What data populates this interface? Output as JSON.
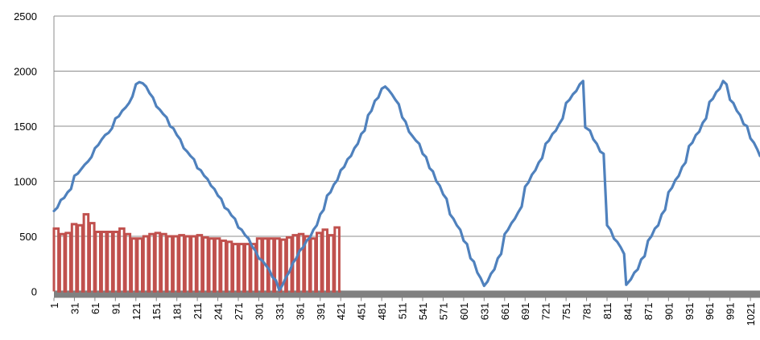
{
  "chart_data": {
    "type": "line",
    "title": "",
    "xlabel": "",
    "ylabel": "",
    "ylim": [
      0,
      2500
    ],
    "xlim": [
      1,
      1035
    ],
    "yticks": [
      0,
      500,
      1000,
      1500,
      2000,
      2500
    ],
    "xticks": [
      1,
      31,
      61,
      91,
      121,
      151,
      181,
      211,
      241,
      271,
      301,
      331,
      361,
      391,
      421,
      451,
      481,
      511,
      541,
      571,
      601,
      631,
      661,
      691,
      721,
      751,
      781,
      811,
      841,
      871,
      901,
      931,
      961,
      991,
      1021
    ],
    "grid": {
      "y": true,
      "x": false
    },
    "legend": "none",
    "series": [
      {
        "color": "#4f81bd",
        "style": "line",
        "points": [
          [
            1,
            730
          ],
          [
            6,
            760
          ],
          [
            11,
            830
          ],
          [
            16,
            850
          ],
          [
            21,
            900
          ],
          [
            26,
            930
          ],
          [
            31,
            1050
          ],
          [
            36,
            1070
          ],
          [
            41,
            1110
          ],
          [
            46,
            1150
          ],
          [
            51,
            1180
          ],
          [
            56,
            1220
          ],
          [
            61,
            1300
          ],
          [
            66,
            1330
          ],
          [
            71,
            1380
          ],
          [
            76,
            1420
          ],
          [
            81,
            1440
          ],
          [
            86,
            1480
          ],
          [
            91,
            1570
          ],
          [
            96,
            1590
          ],
          [
            101,
            1640
          ],
          [
            106,
            1670
          ],
          [
            111,
            1710
          ],
          [
            116,
            1770
          ],
          [
            121,
            1880
          ],
          [
            126,
            1900
          ],
          [
            131,
            1890
          ],
          [
            136,
            1860
          ],
          [
            141,
            1800
          ],
          [
            146,
            1760
          ],
          [
            151,
            1680
          ],
          [
            156,
            1650
          ],
          [
            161,
            1610
          ],
          [
            166,
            1580
          ],
          [
            171,
            1500
          ],
          [
            176,
            1480
          ],
          [
            181,
            1420
          ],
          [
            186,
            1380
          ],
          [
            191,
            1300
          ],
          [
            196,
            1270
          ],
          [
            201,
            1230
          ],
          [
            206,
            1200
          ],
          [
            211,
            1120
          ],
          [
            216,
            1100
          ],
          [
            221,
            1050
          ],
          [
            226,
            1020
          ],
          [
            231,
            960
          ],
          [
            236,
            930
          ],
          [
            241,
            870
          ],
          [
            246,
            840
          ],
          [
            251,
            760
          ],
          [
            256,
            740
          ],
          [
            261,
            690
          ],
          [
            266,
            660
          ],
          [
            271,
            580
          ],
          [
            276,
            560
          ],
          [
            281,
            510
          ],
          [
            286,
            480
          ],
          [
            291,
            410
          ],
          [
            296,
            370
          ],
          [
            301,
            300
          ],
          [
            306,
            280
          ],
          [
            311,
            240
          ],
          [
            316,
            200
          ],
          [
            321,
            130
          ],
          [
            326,
            100
          ],
          [
            331,
            10
          ],
          [
            336,
            60
          ],
          [
            341,
            130
          ],
          [
            346,
            180
          ],
          [
            351,
            260
          ],
          [
            356,
            300
          ],
          [
            361,
            370
          ],
          [
            366,
            400
          ],
          [
            371,
            460
          ],
          [
            376,
            490
          ],
          [
            381,
            560
          ],
          [
            386,
            600
          ],
          [
            391,
            700
          ],
          [
            396,
            740
          ],
          [
            401,
            870
          ],
          [
            406,
            900
          ],
          [
            411,
            970
          ],
          [
            416,
            1010
          ],
          [
            421,
            1100
          ],
          [
            426,
            1130
          ],
          [
            431,
            1200
          ],
          [
            436,
            1230
          ],
          [
            441,
            1300
          ],
          [
            446,
            1340
          ],
          [
            451,
            1430
          ],
          [
            456,
            1460
          ],
          [
            461,
            1600
          ],
          [
            466,
            1640
          ],
          [
            471,
            1730
          ],
          [
            476,
            1760
          ],
          [
            481,
            1840
          ],
          [
            486,
            1860
          ],
          [
            491,
            1830
          ],
          [
            496,
            1790
          ],
          [
            501,
            1740
          ],
          [
            506,
            1700
          ],
          [
            511,
            1580
          ],
          [
            516,
            1540
          ],
          [
            521,
            1450
          ],
          [
            526,
            1410
          ],
          [
            531,
            1370
          ],
          [
            536,
            1340
          ],
          [
            541,
            1250
          ],
          [
            546,
            1220
          ],
          [
            551,
            1120
          ],
          [
            556,
            1090
          ],
          [
            561,
            1000
          ],
          [
            566,
            960
          ],
          [
            571,
            880
          ],
          [
            576,
            840
          ],
          [
            581,
            700
          ],
          [
            586,
            660
          ],
          [
            591,
            600
          ],
          [
            596,
            560
          ],
          [
            601,
            460
          ],
          [
            606,
            430
          ],
          [
            611,
            300
          ],
          [
            616,
            270
          ],
          [
            621,
            170
          ],
          [
            626,
            120
          ],
          [
            631,
            50
          ],
          [
            636,
            90
          ],
          [
            641,
            160
          ],
          [
            646,
            200
          ],
          [
            651,
            300
          ],
          [
            656,
            340
          ],
          [
            661,
            520
          ],
          [
            666,
            560
          ],
          [
            671,
            620
          ],
          [
            676,
            660
          ],
          [
            681,
            720
          ],
          [
            686,
            770
          ],
          [
            691,
            950
          ],
          [
            696,
            990
          ],
          [
            701,
            1060
          ],
          [
            706,
            1100
          ],
          [
            711,
            1170
          ],
          [
            716,
            1210
          ],
          [
            721,
            1340
          ],
          [
            726,
            1370
          ],
          [
            731,
            1430
          ],
          [
            736,
            1460
          ],
          [
            741,
            1520
          ],
          [
            746,
            1570
          ],
          [
            751,
            1710
          ],
          [
            756,
            1740
          ],
          [
            761,
            1790
          ],
          [
            766,
            1820
          ],
          [
            771,
            1880
          ],
          [
            776,
            1910
          ],
          [
            779,
            1490
          ],
          [
            786,
            1460
          ],
          [
            791,
            1380
          ],
          [
            796,
            1340
          ],
          [
            801,
            1270
          ],
          [
            806,
            1250
          ],
          [
            811,
            600
          ],
          [
            816,
            560
          ],
          [
            821,
            480
          ],
          [
            826,
            450
          ],
          [
            831,
            400
          ],
          [
            836,
            340
          ],
          [
            839,
            60
          ],
          [
            846,
            110
          ],
          [
            851,
            170
          ],
          [
            856,
            200
          ],
          [
            861,
            290
          ],
          [
            866,
            320
          ],
          [
            871,
            460
          ],
          [
            876,
            500
          ],
          [
            881,
            570
          ],
          [
            886,
            600
          ],
          [
            891,
            700
          ],
          [
            896,
            740
          ],
          [
            901,
            900
          ],
          [
            906,
            940
          ],
          [
            911,
            1010
          ],
          [
            916,
            1050
          ],
          [
            921,
            1130
          ],
          [
            926,
            1170
          ],
          [
            931,
            1320
          ],
          [
            936,
            1350
          ],
          [
            941,
            1420
          ],
          [
            946,
            1450
          ],
          [
            951,
            1530
          ],
          [
            956,
            1570
          ],
          [
            961,
            1720
          ],
          [
            966,
            1750
          ],
          [
            971,
            1810
          ],
          [
            976,
            1840
          ],
          [
            981,
            1910
          ],
          [
            986,
            1880
          ],
          [
            991,
            1740
          ],
          [
            996,
            1710
          ],
          [
            1001,
            1640
          ],
          [
            1006,
            1600
          ],
          [
            1011,
            1520
          ],
          [
            1016,
            1500
          ],
          [
            1021,
            1390
          ],
          [
            1026,
            1350
          ],
          [
            1031,
            1290
          ],
          [
            1035,
            1230
          ]
        ]
      },
      {
        "color": "#c0504d",
        "style": "pulse",
        "values": [
          570,
          520,
          530,
          610,
          600,
          700,
          620,
          540,
          540,
          540,
          540,
          570,
          520,
          480,
          480,
          500,
          520,
          530,
          520,
          500,
          500,
          510,
          500,
          500,
          510,
          490,
          480,
          480,
          460,
          450,
          430,
          430,
          430,
          430,
          480,
          480,
          480,
          480,
          470,
          490,
          510,
          520,
          500,
          480,
          530,
          560,
          510,
          580
        ],
        "x_start": 1,
        "x_end": 421
      }
    ]
  }
}
